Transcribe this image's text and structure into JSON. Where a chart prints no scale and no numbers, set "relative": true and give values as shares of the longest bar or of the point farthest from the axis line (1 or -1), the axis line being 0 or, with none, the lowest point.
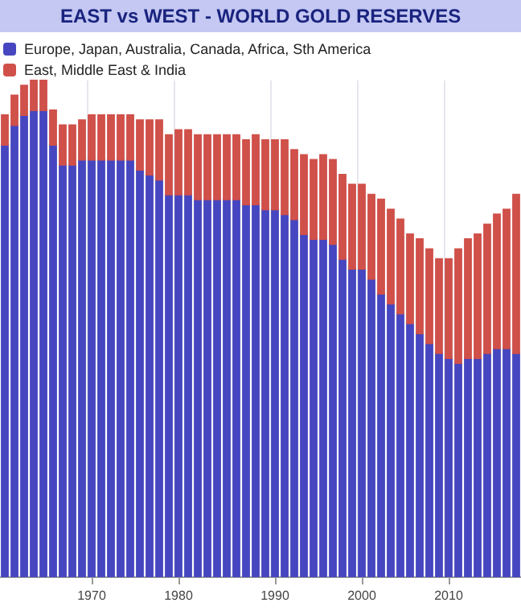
{
  "chart_data": {
    "type": "bar",
    "title": "EAST vs WEST - WORLD GOLD RESERVES",
    "relative": true,
    "stacked": true,
    "grid": "x",
    "legend": "top left",
    "categories": [
      null,
      null,
      null,
      null,
      null,
      null,
      null,
      null,
      null,
      "1970",
      null,
      null,
      null,
      null,
      null,
      null,
      null,
      null,
      "1980",
      null,
      null,
      null,
      null,
      null,
      null,
      null,
      null,
      null,
      "1990",
      null,
      null,
      null,
      null,
      null,
      null,
      null,
      null,
      "2000",
      null,
      null,
      null,
      null,
      null,
      null,
      null,
      null,
      "2010",
      null,
      null,
      null,
      null,
      null,
      null,
      null
    ],
    "series": [
      {
        "name": "Europe, Japan, Australia, Canada, Africa, Sth America",
        "color": "#4646c0",
        "values": [
          0.87,
          0.91,
          0.93,
          0.94,
          0.94,
          0.87,
          0.83,
          0.83,
          0.84,
          0.84,
          0.84,
          0.84,
          0.84,
          0.84,
          0.82,
          0.81,
          0.8,
          0.77,
          0.77,
          0.77,
          0.76,
          0.76,
          0.76,
          0.76,
          0.76,
          0.75,
          0.75,
          0.74,
          0.74,
          0.73,
          0.72,
          0.69,
          0.68,
          0.68,
          0.67,
          0.64,
          0.62,
          0.62,
          0.6,
          0.57,
          0.55,
          0.53,
          0.51,
          0.49,
          0.47,
          0.45,
          0.44,
          0.43,
          0.44,
          0.44,
          0.45,
          0.46,
          0.46,
          0.45
        ]
      },
      {
        "name": "East, Middle East & India",
        "color": "#d0504a",
        "values": [
          0.06,
          0.06,
          0.06,
          0.06,
          0.06,
          0.07,
          0.08,
          0.08,
          0.08,
          0.09,
          0.09,
          0.09,
          0.09,
          0.09,
          0.1,
          0.11,
          0.12,
          0.12,
          0.13,
          0.13,
          0.13,
          0.13,
          0.13,
          0.13,
          0.13,
          0.13,
          0.14,
          0.14,
          0.14,
          0.15,
          0.14,
          0.16,
          0.16,
          0.17,
          0.17,
          0.17,
          0.17,
          0.17,
          0.17,
          0.19,
          0.19,
          0.19,
          0.18,
          0.19,
          0.19,
          0.19,
          0.2,
          0.23,
          0.24,
          0.25,
          0.26,
          0.27,
          0.28,
          0.32
        ]
      }
    ]
  }
}
